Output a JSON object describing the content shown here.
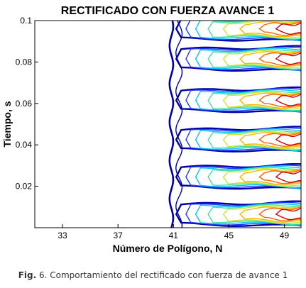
{
  "chart_data": {
    "type": "contour",
    "title": "RECTIFICADO CON FUERZA AVANCE 1",
    "xlabel": "Número de Polígono,  N",
    "ylabel": "Tiempo, s",
    "xlim": [
      31,
      50.2
    ],
    "ylim": [
      0,
      0.1
    ],
    "xticks": [
      {
        "value": 33,
        "label": "33"
      },
      {
        "value": 37,
        "label": "37"
      },
      {
        "value": 41,
        "label": "41"
      },
      {
        "value": 45,
        "label": "45"
      },
      {
        "value": 49,
        "label": "49"
      }
    ],
    "yticks": [
      {
        "value": 0.02,
        "label": "0.02"
      },
      {
        "value": 0.04,
        "label": "0.04"
      },
      {
        "value": 0.06,
        "label": "0.06"
      },
      {
        "value": 0.08,
        "label": "0.08"
      },
      {
        "value": 0.1,
        "label": "0.1"
      }
    ],
    "grid": false,
    "colormap": [
      "#0000a8",
      "#1e3cff",
      "#00c8ff",
      "#40e0a0",
      "#c8e632",
      "#ffb400",
      "#ff6400",
      "#d20000"
    ],
    "boundary_x": 40.85,
    "level_onset_x": [
      41.2,
      41.9,
      42.6,
      43.5,
      44.6,
      45.8,
      47.2,
      48.4
    ],
    "band_centers_y": [
      0.0065,
      0.0245,
      0.0425,
      0.0615,
      0.0815,
      0.096
    ]
  },
  "caption": {
    "prefix": "Fig.",
    "text": " 6. Comportamiento del rectificado con fuerza de avance 1"
  }
}
